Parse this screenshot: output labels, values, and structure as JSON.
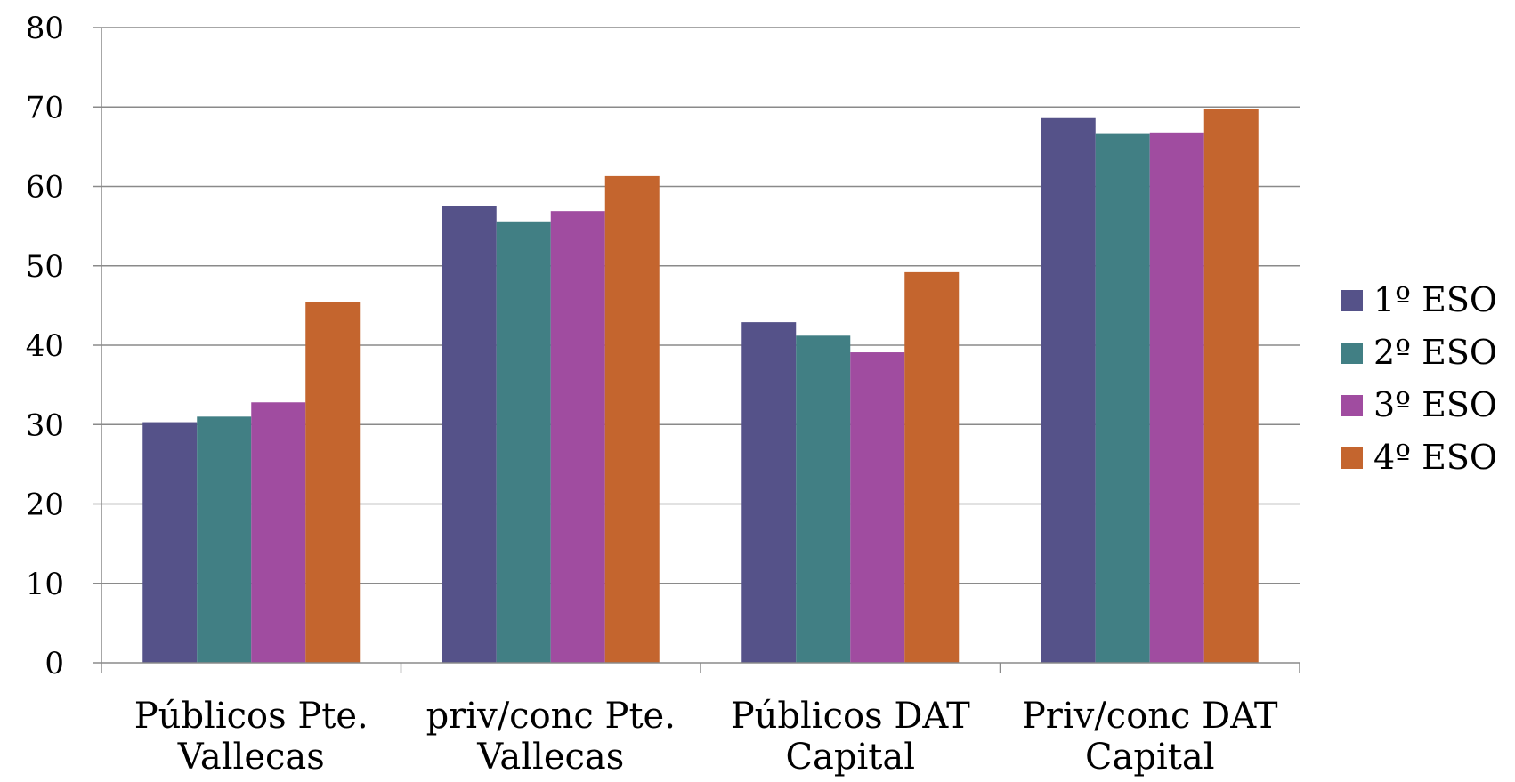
{
  "chart_data": {
    "type": "bar",
    "categories": [
      [
        "Públicos Pte.",
        "Vallecas"
      ],
      [
        "priv/conc Pte.",
        "Vallecas"
      ],
      [
        "Públicos DAT",
        "Capital"
      ],
      [
        "Priv/conc DAT",
        "Capital"
      ]
    ],
    "series": [
      {
        "name": "1º ESO",
        "color": "#555289",
        "values": [
          30.3,
          57.5,
          42.9,
          68.6
        ]
      },
      {
        "name": "2º ESO",
        "color": "#417F84",
        "values": [
          31.0,
          55.6,
          41.2,
          66.6
        ]
      },
      {
        "name": "3º ESO",
        "color": "#A04CA0",
        "values": [
          32.8,
          56.9,
          39.1,
          66.8
        ]
      },
      {
        "name": "4º ESO",
        "color": "#C4652E",
        "values": [
          45.4,
          61.3,
          49.2,
          69.7
        ]
      }
    ],
    "ylim": [
      0,
      80
    ],
    "yticks": [
      0,
      10,
      20,
      30,
      40,
      50,
      60,
      70,
      80
    ],
    "grid": true,
    "legend_position": "right",
    "title": "",
    "xlabel": "",
    "ylabel": ""
  }
}
